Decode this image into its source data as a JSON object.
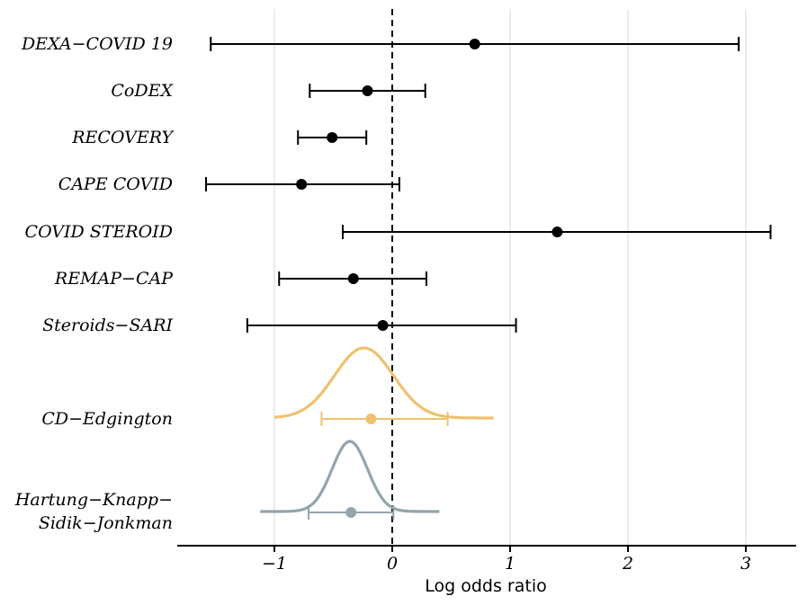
{
  "chart_data": {
    "type": "forest",
    "xlabel": "Log odds ratio",
    "xlim": [
      -1.8,
      3.45
    ],
    "xticks": [
      -1,
      0,
      1,
      2,
      3
    ],
    "xtick_labels": [
      "−1",
      "0",
      "1",
      "2",
      "3"
    ],
    "reference_line": 0,
    "grid": "vertical",
    "studies": [
      {
        "name": "DEXA−COVID 19",
        "estimate": 0.7,
        "lower": -1.54,
        "upper": 2.94
      },
      {
        "name": "CoDEX",
        "estimate": -0.21,
        "lower": -0.7,
        "upper": 0.28
      },
      {
        "name": "RECOVERY",
        "estimate": -0.51,
        "lower": -0.8,
        "upper": -0.22
      },
      {
        "name": "CAPE COVID",
        "estimate": -0.77,
        "lower": -1.58,
        "upper": 0.06
      },
      {
        "name": "COVID STEROID",
        "estimate": 1.4,
        "lower": -0.42,
        "upper": 3.21
      },
      {
        "name": "REMAP−CAP",
        "estimate": -0.33,
        "lower": -0.96,
        "upper": 0.29
      },
      {
        "name": "Steroids−SARI",
        "estimate": -0.08,
        "lower": -1.23,
        "upper": 1.05
      }
    ],
    "summaries": [
      {
        "name_lines": [
          "CD−Edgington"
        ],
        "estimate": -0.18,
        "lower": -0.6,
        "upper": 0.47,
        "mode": -0.24,
        "sd": 0.25,
        "color": "#EEC16F",
        "range": [
          -1.0,
          0.86
        ]
      },
      {
        "name_lines": [
          "Hartung−Knapp−",
          "Sidik−Jonkman"
        ],
        "estimate": -0.35,
        "lower": -0.71,
        "upper": 0.01,
        "mode": -0.36,
        "sd": 0.15,
        "color": "#93A5AD",
        "range": [
          -1.12,
          0.4
        ]
      }
    ]
  }
}
